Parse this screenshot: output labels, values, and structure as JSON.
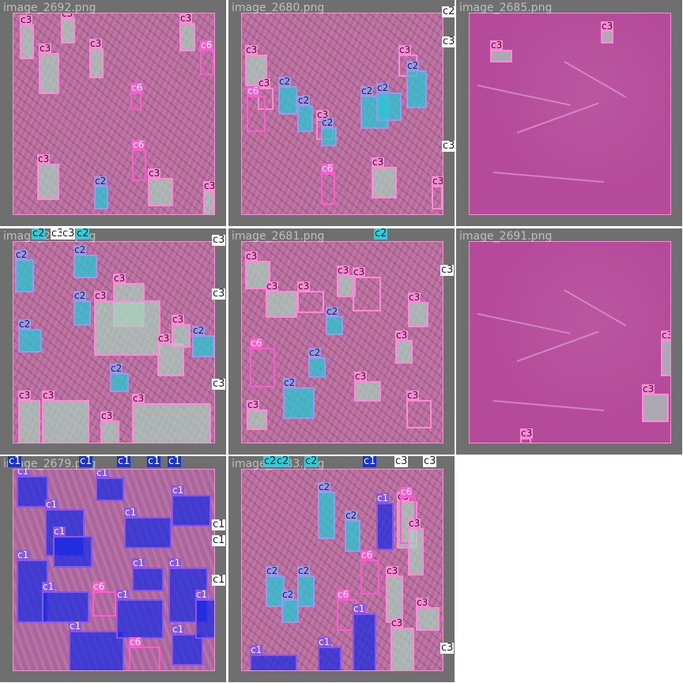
{
  "panels": [
    {
      "caption": "image_2692.png",
      "style": "tissue",
      "boxes": [
        {
          "cls": "c3",
          "label": "c3",
          "style": "c3p",
          "fill": "green"
        },
        {
          "cls": "c3",
          "label": "c3",
          "style": "c3p",
          "fill": "green"
        },
        {
          "cls": "c3",
          "label": "c3",
          "style": "c3p",
          "fill": "green"
        },
        {
          "cls": "c3",
          "label": "c3",
          "style": "c3p",
          "fill": "green"
        },
        {
          "cls": "c3",
          "label": "c3",
          "style": "c3p",
          "fill": "green"
        },
        {
          "cls": "c6",
          "label": "c6",
          "style": "c6",
          "fill": "none"
        },
        {
          "cls": "c6",
          "label": "c6",
          "style": "c6",
          "fill": "none"
        },
        {
          "cls": "c3",
          "label": "c3",
          "style": "c3p",
          "fill": "green"
        },
        {
          "cls": "c6",
          "label": "c6",
          "style": "c6",
          "fill": "none"
        },
        {
          "cls": "c2",
          "label": "c2",
          "style": "c2",
          "fill": "cyan"
        },
        {
          "cls": "c3",
          "label": "c3",
          "style": "c3p",
          "fill": "green"
        },
        {
          "cls": "c3",
          "label": "c3",
          "style": "c3p",
          "fill": "green"
        }
      ]
    },
    {
      "caption": "image_2680.png",
      "style": "tissue",
      "boxes": [
        {
          "cls": "c3",
          "label": "c3",
          "style": "c3p",
          "fill": "green"
        },
        {
          "cls": "c3",
          "label": "c3",
          "style": "c3p",
          "fill": "none"
        },
        {
          "cls": "c2",
          "label": "c2",
          "style": "c2",
          "fill": "cyan"
        },
        {
          "cls": "c2",
          "label": "c2",
          "style": "c2",
          "fill": "cyan"
        },
        {
          "cls": "c3",
          "label": "c3",
          "style": "c3p",
          "fill": "none"
        },
        {
          "cls": "c2",
          "label": "c2",
          "style": "c2",
          "fill": "cyan"
        },
        {
          "cls": "c6",
          "label": "c6",
          "style": "c6",
          "fill": "none"
        },
        {
          "cls": "c2",
          "label": "c2",
          "style": "c2",
          "fill": "cyan"
        },
        {
          "cls": "c2",
          "label": "c2",
          "style": "c2",
          "fill": "cyan"
        },
        {
          "cls": "c3",
          "label": "c3",
          "style": "c3p",
          "fill": "none"
        },
        {
          "cls": "c2",
          "label": "c2",
          "style": "c2",
          "fill": "cyan"
        },
        {
          "cls": "c3",
          "label": "c3",
          "style": "c3p",
          "fill": "green"
        },
        {
          "cls": "c3",
          "label": "c3",
          "style": "c3p",
          "fill": "none"
        },
        {
          "cls": "c6",
          "label": "c6",
          "style": "c6",
          "fill": "none"
        }
      ],
      "edge_labels": [
        "c2",
        "c3",
        "c3"
      ]
    },
    {
      "caption": "image_2685.png",
      "style": "plain",
      "boxes": [
        {
          "cls": "c3",
          "label": "c3",
          "style": "c3p",
          "fill": "green"
        },
        {
          "cls": "c3",
          "label": "c3",
          "style": "c3p",
          "fill": "green"
        }
      ]
    },
    {
      "caption": "image_2682.png",
      "style": "tissue",
      "boxes": [
        {
          "cls": "c2",
          "label": "c2",
          "style": "c2",
          "fill": "cyan"
        },
        {
          "cls": "c3",
          "label": "c3",
          "style": "c3p",
          "fill": "green"
        },
        {
          "cls": "c2",
          "label": "c2",
          "style": "c2",
          "fill": "cyan"
        },
        {
          "cls": "c3",
          "label": "c3",
          "style": "c3p",
          "fill": "green"
        },
        {
          "cls": "c3",
          "label": "c3",
          "style": "c3p",
          "fill": "green"
        },
        {
          "cls": "c2",
          "label": "c2",
          "style": "c2",
          "fill": "cyan"
        },
        {
          "cls": "c3",
          "label": "c3",
          "style": "c3p",
          "fill": "green"
        },
        {
          "cls": "c2",
          "label": "c2",
          "style": "c2",
          "fill": "cyan"
        },
        {
          "cls": "c3",
          "label": "c3",
          "style": "c3p",
          "fill": "green"
        },
        {
          "cls": "c3",
          "label": "c3",
          "style": "c3p",
          "fill": "green"
        },
        {
          "cls": "c2",
          "label": "c2",
          "style": "c2",
          "fill": "cyan"
        },
        {
          "cls": "c3",
          "label": "c3",
          "style": "c3p",
          "fill": "green"
        },
        {
          "cls": "c3",
          "label": "c3",
          "style": "c3p",
          "fill": "green"
        },
        {
          "cls": "c2",
          "label": "c2",
          "style": "c2",
          "fill": "cyan"
        }
      ],
      "edge_labels": [
        "c3",
        "c3",
        "c3",
        "c3"
      ],
      "top_labels": [
        "c2",
        "c3",
        "c3",
        "c2"
      ]
    },
    {
      "caption": "image_2681.png",
      "style": "tissue",
      "boxes": [
        {
          "cls": "c3",
          "label": "c3",
          "style": "c3p",
          "fill": "green"
        },
        {
          "cls": "c3",
          "label": "c3",
          "style": "c3p",
          "fill": "green"
        },
        {
          "cls": "c3",
          "label": "c3",
          "style": "c3p",
          "fill": "none"
        },
        {
          "cls": "c3",
          "label": "c3",
          "style": "c3p",
          "fill": "green"
        },
        {
          "cls": "c2",
          "label": "c2",
          "style": "c2",
          "fill": "cyan"
        },
        {
          "cls": "c3",
          "label": "c3",
          "style": "c3p",
          "fill": "none"
        },
        {
          "cls": "c3",
          "label": "c3",
          "style": "c3p",
          "fill": "green"
        },
        {
          "cls": "c2",
          "label": "c2",
          "style": "c2",
          "fill": "cyan"
        },
        {
          "cls": "c3",
          "label": "c3",
          "style": "c3p",
          "fill": "green"
        },
        {
          "cls": "c6",
          "label": "c6",
          "style": "c6",
          "fill": "none"
        },
        {
          "cls": "c3",
          "label": "c3",
          "style": "c3p",
          "fill": "green"
        },
        {
          "cls": "c2",
          "label": "c2",
          "style": "c2",
          "fill": "cyan"
        },
        {
          "cls": "c3",
          "label": "c3",
          "style": "c3p",
          "fill": "none"
        },
        {
          "cls": "c3",
          "label": "c3",
          "style": "c3p",
          "fill": "green"
        }
      ],
      "edge_labels": [
        "c3"
      ],
      "top_labels": [
        "c2"
      ]
    },
    {
      "caption": "image_2691.png",
      "style": "plain",
      "boxes": [
        {
          "cls": "c3",
          "label": "c3",
          "style": "c3p",
          "fill": "green"
        },
        {
          "cls": "c3",
          "label": "c3",
          "style": "c3p",
          "fill": "green"
        },
        {
          "cls": "c3",
          "label": "c3",
          "style": "c3p",
          "fill": "none"
        }
      ]
    },
    {
      "caption": "image_2679.png",
      "style": "dense",
      "boxes": [
        {
          "cls": "c1",
          "label": "c1",
          "style": "c1v",
          "fill": "blue"
        },
        {
          "cls": "c1",
          "label": "c1",
          "style": "c1v",
          "fill": "blue"
        },
        {
          "cls": "c1",
          "label": "c1",
          "style": "c1v",
          "fill": "blue"
        },
        {
          "cls": "c1",
          "label": "c1",
          "style": "c1v",
          "fill": "blue"
        },
        {
          "cls": "c1",
          "label": "c1",
          "style": "c1v",
          "fill": "blue"
        },
        {
          "cls": "c6",
          "label": "c6",
          "style": "c6",
          "fill": "none"
        },
        {
          "cls": "c1",
          "label": "c1",
          "style": "c1v",
          "fill": "blue"
        },
        {
          "cls": "c1",
          "label": "c1",
          "style": "c1v",
          "fill": "blue"
        },
        {
          "cls": "c1",
          "label": "c1",
          "style": "c1v",
          "fill": "blue"
        },
        {
          "cls": "c1",
          "label": "c1",
          "style": "c1v",
          "fill": "blue"
        },
        {
          "cls": "c1",
          "label": "c1",
          "style": "c1v",
          "fill": "blue"
        },
        {
          "cls": "c6",
          "label": "c6",
          "style": "c6",
          "fill": "none"
        },
        {
          "cls": "c1",
          "label": "c1",
          "style": "c1v",
          "fill": "blue"
        },
        {
          "cls": "c1",
          "label": "c1",
          "style": "c1v",
          "fill": "blue"
        },
        {
          "cls": "c1",
          "label": "c1",
          "style": "c1v",
          "fill": "blue"
        },
        {
          "cls": "c1",
          "label": "c1",
          "style": "c1v",
          "fill": "blue"
        }
      ],
      "edge_labels": [
        "c1",
        "c1",
        "c1"
      ],
      "top_labels": [
        "c1",
        "c1",
        "c1",
        "c1",
        "c1"
      ]
    },
    {
      "caption": "image_2683.png",
      "style": "tissue",
      "boxes": [
        {
          "cls": "c2",
          "label": "c2",
          "style": "c2",
          "fill": "cyan"
        },
        {
          "cls": "c2",
          "label": "c2",
          "style": "c2",
          "fill": "cyan"
        },
        {
          "cls": "c1",
          "label": "c1",
          "style": "c1v",
          "fill": "blue"
        },
        {
          "cls": "c6",
          "label": "c6",
          "style": "c6",
          "fill": "none"
        },
        {
          "cls": "c3",
          "label": "c3",
          "style": "c3p",
          "fill": "green"
        },
        {
          "cls": "c2",
          "label": "c2",
          "style": "c2",
          "fill": "cyan"
        },
        {
          "cls": "c2",
          "label": "c2",
          "style": "c2",
          "fill": "cyan"
        },
        {
          "cls": "c6",
          "label": "c6",
          "style": "c6",
          "fill": "none"
        },
        {
          "cls": "c1",
          "label": "c1",
          "style": "c1v",
          "fill": "blue"
        },
        {
          "cls": "c3",
          "label": "c3",
          "style": "c3p",
          "fill": "green"
        },
        {
          "cls": "c2",
          "label": "c2",
          "style": "c2",
          "fill": "cyan"
        },
        {
          "cls": "c3",
          "label": "c3",
          "style": "c3p",
          "fill": "green"
        },
        {
          "cls": "c1",
          "label": "c1",
          "style": "c1v",
          "fill": "blue"
        },
        {
          "cls": "c3",
          "label": "c3",
          "style": "c3p",
          "fill": "green"
        },
        {
          "cls": "c6",
          "label": "c6",
          "style": "c6",
          "fill": "none"
        },
        {
          "cls": "c1",
          "label": "c1",
          "style": "c1v",
          "fill": "blue"
        },
        {
          "cls": "c3",
          "label": "c3",
          "style": "c3p",
          "fill": "green"
        }
      ],
      "edge_labels": [
        "c3"
      ],
      "top_labels": [
        "c2",
        "c2",
        "c2",
        "c1",
        "c3",
        "c3"
      ]
    }
  ]
}
